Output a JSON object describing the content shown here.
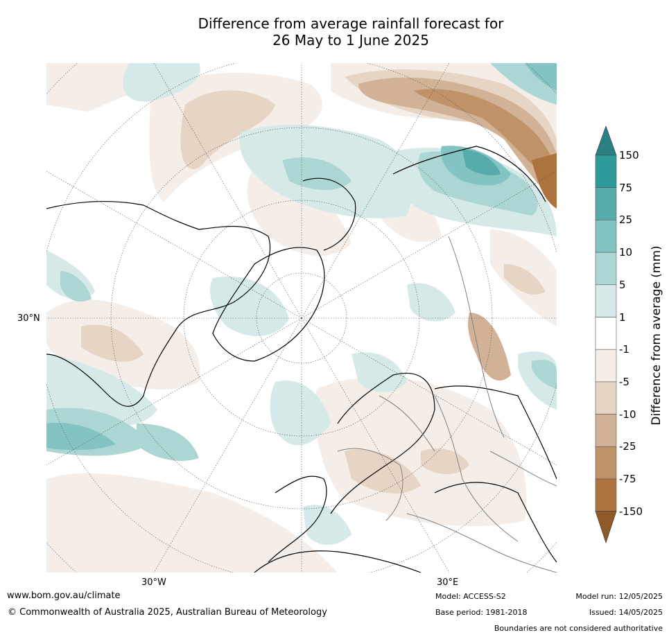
{
  "title_line1": "Difference from average rainfall forecast for",
  "title_line2": "26 May to 1 June 2025",
  "map": {
    "lat_label": "30°N",
    "lon_labels": [
      "30°W",
      "30°E"
    ]
  },
  "colorbar": {
    "title": "Difference from average (mm)",
    "ticks": [
      "150",
      "75",
      "25",
      "10",
      "5",
      "1",
      "-1",
      "-5",
      "-10",
      "-25",
      "-75",
      "-150"
    ],
    "colors": {
      "wet_extend": "#2b8083",
      "wet": [
        "#2f9a9a",
        "#58abab",
        "#83c3c1",
        "#acd6d4",
        "#d5e9e8"
      ],
      "neutral": "#ffffff",
      "dry": [
        "#f4ede8",
        "#e6d4c5",
        "#d2b296",
        "#bf9268",
        "#ad733e"
      ],
      "dry_extend": "#8f5a28"
    }
  },
  "footer": {
    "website": "www.bom.gov.au/climate",
    "copyright": "© Commonwealth of Australia 2025, Australian Bureau of Meteorology",
    "model": "Model: ACCESS-S2",
    "base_period": "Base period: 1981-2018",
    "model_run": "Model run: 12/05/2025",
    "issued": "Issued: 14/05/2025",
    "disclaimer": "Boundaries are not considered authoritative"
  }
}
